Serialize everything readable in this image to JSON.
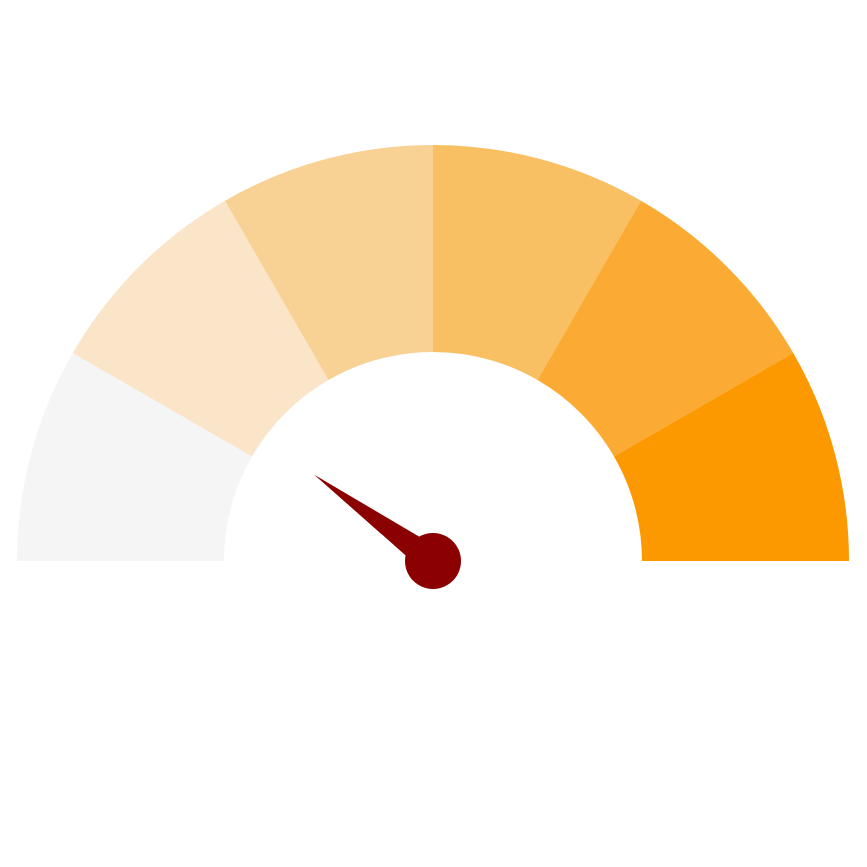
{
  "chart_data": {
    "type": "gauge",
    "title": "",
    "segments": [
      {
        "color": "#f5f5f5"
      },
      {
        "color": "#fae5c8"
      },
      {
        "color": "#f8d194"
      },
      {
        "color": "#f9bf63"
      },
      {
        "color": "#fbab33"
      },
      {
        "color": "#fd9900"
      }
    ],
    "needle": {
      "value_fraction": 0.2,
      "color": "#8b0000"
    }
  }
}
